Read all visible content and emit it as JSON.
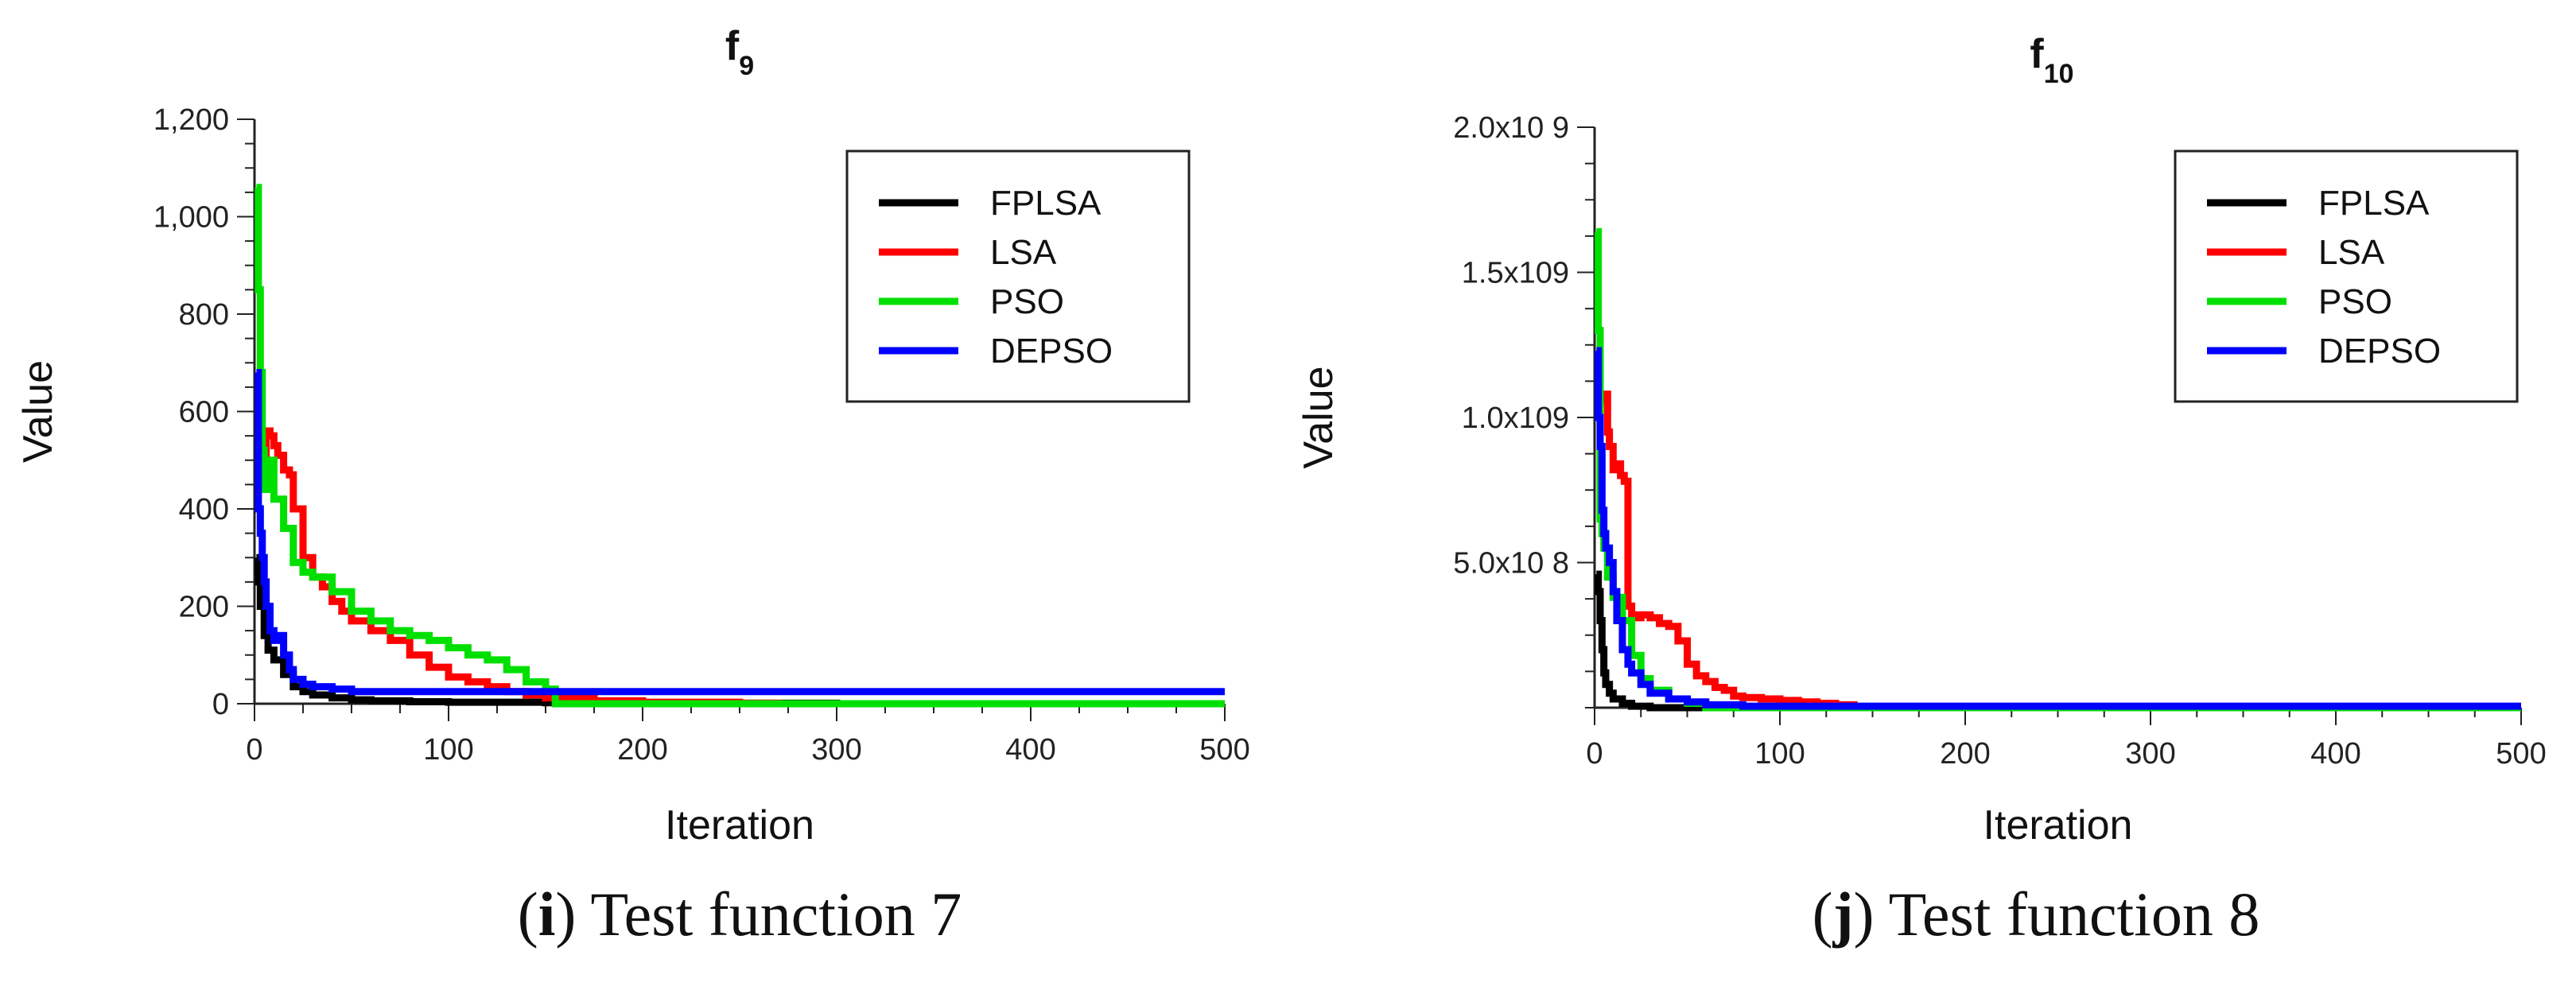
{
  "chart_data": [
    {
      "type": "line",
      "title": "f",
      "title_sub": "9",
      "xlabel": "Iteration",
      "ylabel": "Value",
      "xlim": [
        0,
        500
      ],
      "ylim": [
        0,
        1200
      ],
      "x_ticks": [
        0,
        100,
        200,
        300,
        400,
        500
      ],
      "y_ticks": [
        0,
        200,
        400,
        600,
        800,
        1000,
        1200
      ],
      "y_tick_labels": [
        "0",
        "200",
        "400",
        "600",
        "800",
        "1,000",
        "1,200"
      ],
      "legend": [
        "FPLSA",
        "LSA",
        "PSO",
        "DEPSO"
      ],
      "legend_position": "top-right",
      "series": [
        {
          "name": "FPLSA",
          "color": "#000000",
          "x": [
            1,
            2,
            3,
            5,
            7,
            10,
            15,
            20,
            25,
            30,
            40,
            50,
            60,
            80,
            100,
            150,
            200,
            300,
            500
          ],
          "y": [
            300,
            250,
            200,
            140,
            110,
            90,
            60,
            35,
            25,
            18,
            12,
            8,
            6,
            4,
            3,
            2,
            1,
            0,
            0
          ]
        },
        {
          "name": "LSA",
          "color": "#ff0000",
          "x": [
            5,
            6,
            8,
            10,
            12,
            15,
            18,
            20,
            25,
            30,
            35,
            40,
            45,
            50,
            60,
            70,
            80,
            90,
            100,
            110,
            120,
            130,
            140,
            150,
            175,
            200,
            250,
            270,
            300,
            500
          ],
          "y": [
            500,
            560,
            550,
            530,
            510,
            480,
            470,
            400,
            300,
            260,
            240,
            210,
            190,
            170,
            150,
            130,
            100,
            75,
            55,
            45,
            35,
            25,
            18,
            12,
            6,
            3,
            1,
            0,
            0,
            0
          ]
        },
        {
          "name": "PSO",
          "color": "#00e000",
          "x": [
            1,
            2,
            3,
            4,
            5,
            7,
            10,
            15,
            20,
            25,
            30,
            40,
            50,
            60,
            70,
            80,
            90,
            100,
            110,
            120,
            130,
            140,
            150,
            155,
            500
          ],
          "y": [
            1060,
            850,
            680,
            520,
            440,
            500,
            420,
            360,
            290,
            270,
            260,
            230,
            190,
            170,
            150,
            140,
            130,
            115,
            100,
            90,
            70,
            45,
            30,
            0,
            0
          ]
        },
        {
          "name": "DEPSO",
          "color": "#0000ff",
          "x": [
            1,
            2,
            3,
            4,
            5,
            6,
            8,
            10,
            12,
            15,
            18,
            20,
            25,
            30,
            40,
            50,
            100,
            200,
            300,
            500
          ],
          "y": [
            680,
            400,
            350,
            300,
            250,
            200,
            150,
            130,
            140,
            100,
            70,
            50,
            40,
            35,
            30,
            25,
            25,
            25,
            25,
            25
          ]
        }
      ]
    },
    {
      "type": "line",
      "title": "f",
      "title_sub": "10",
      "xlabel": "Iteration",
      "ylabel": "Value",
      "xlim": [
        0,
        500
      ],
      "ylim": [
        0,
        2000000000
      ],
      "x_ticks": [
        0,
        100,
        200,
        300,
        400,
        500
      ],
      "y_ticks": [
        500000000,
        1000000000,
        1500000000,
        2000000000
      ],
      "y_tick_labels": [
        "5.0x10 8",
        "1.0x109",
        "1.5x109",
        "2.0x10 9"
      ],
      "legend": [
        "FPLSA",
        "LSA",
        "PSO",
        "DEPSO"
      ],
      "legend_position": "top-right",
      "series": [
        {
          "name": "FPLSA",
          "color": "#000000",
          "x": [
            1,
            2,
            3,
            4,
            5,
            6,
            8,
            10,
            15,
            20,
            30,
            500
          ],
          "y": [
            460000000,
            400000000,
            300000000,
            200000000,
            120000000,
            80000000,
            50000000,
            30000000,
            15000000,
            5000000,
            0,
            0
          ]
        },
        {
          "name": "LSA",
          "color": "#ff0000",
          "x": [
            5,
            6,
            7,
            8,
            10,
            12,
            14,
            16,
            18,
            20,
            22,
            25,
            30,
            35,
            40,
            45,
            50,
            55,
            60,
            65,
            70,
            75,
            80,
            90,
            100,
            110,
            120,
            130,
            140,
            500
          ],
          "y": [
            1050000000,
            1080000000,
            950000000,
            900000000,
            820000000,
            840000000,
            800000000,
            780000000,
            350000000,
            320000000,
            310000000,
            320000000,
            310000000,
            290000000,
            280000000,
            230000000,
            150000000,
            110000000,
            90000000,
            70000000,
            60000000,
            40000000,
            35000000,
            30000000,
            25000000,
            20000000,
            15000000,
            10000000,
            0,
            0
          ]
        },
        {
          "name": "PSO",
          "color": "#00e000",
          "x": [
            1,
            2,
            3,
            4,
            5,
            7,
            10,
            15,
            20,
            25,
            30,
            40,
            50,
            60,
            500
          ],
          "y": [
            1640000000,
            1300000000,
            650000000,
            600000000,
            550000000,
            450000000,
            380000000,
            300000000,
            180000000,
            100000000,
            60000000,
            30000000,
            15000000,
            0,
            0
          ]
        },
        {
          "name": "DEPSO",
          "color": "#0000ff",
          "x": [
            1,
            2,
            3,
            4,
            5,
            6,
            8,
            10,
            12,
            15,
            18,
            20,
            25,
            30,
            40,
            50,
            60,
            80,
            500
          ],
          "y": [
            1230000000,
            1000000000,
            900000000,
            680000000,
            600000000,
            550000000,
            500000000,
            400000000,
            300000000,
            200000000,
            150000000,
            120000000,
            80000000,
            50000000,
            30000000,
            20000000,
            10000000,
            5000000,
            5000000
          ]
        }
      ]
    }
  ],
  "captions": [
    {
      "label": "i",
      "text": " Test function 7"
    },
    {
      "label": "j",
      "text": " Test function 8"
    }
  ]
}
